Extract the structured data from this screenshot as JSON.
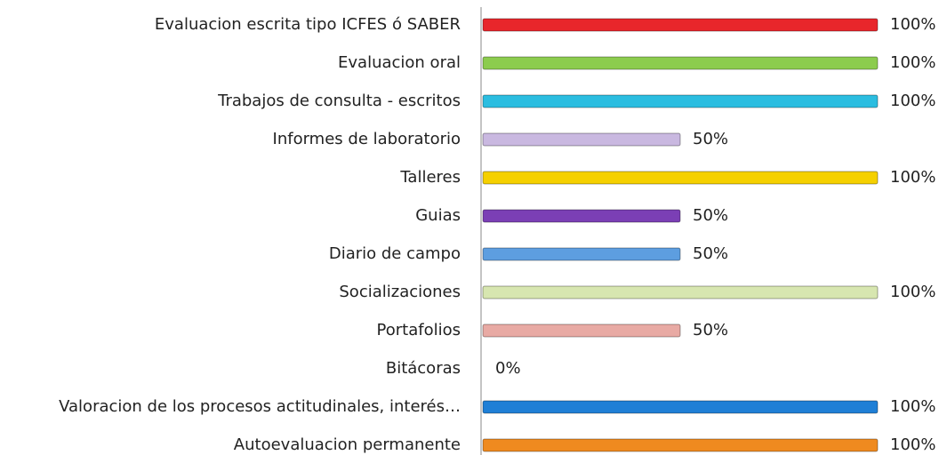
{
  "chart_data": {
    "type": "barh",
    "categories": [
      "Evaluacion escrita tipo ICFES ó SABER",
      "Evaluacion oral",
      "Trabajos de consulta - escritos",
      "Informes de laboratorio",
      "Talleres",
      "Guias",
      "Diario de campo",
      "Socializaciones",
      "Portafolios",
      "Bitácoras",
      "Valoracion de los procesos actitudinales, interés…",
      "Autoevaluacion permanente"
    ],
    "values": [
      100,
      100,
      100,
      50,
      100,
      50,
      50,
      100,
      50,
      0,
      100,
      100
    ],
    "value_labels": [
      "100%",
      "100%",
      "100%",
      "50%",
      "100%",
      "50%",
      "50%",
      "100%",
      "50%",
      "0%",
      "100%",
      "100%"
    ],
    "colors": [
      "#e8262b",
      "#8ccc4e",
      "#2bbde0",
      "#c9b8e0",
      "#f5d000",
      "#7b3fb5",
      "#5d9ee0",
      "#d7e6b0",
      "#e8aaa4",
      "#9e9e9e",
      "#1f7fd6",
      "#ef8a1f"
    ]
  }
}
